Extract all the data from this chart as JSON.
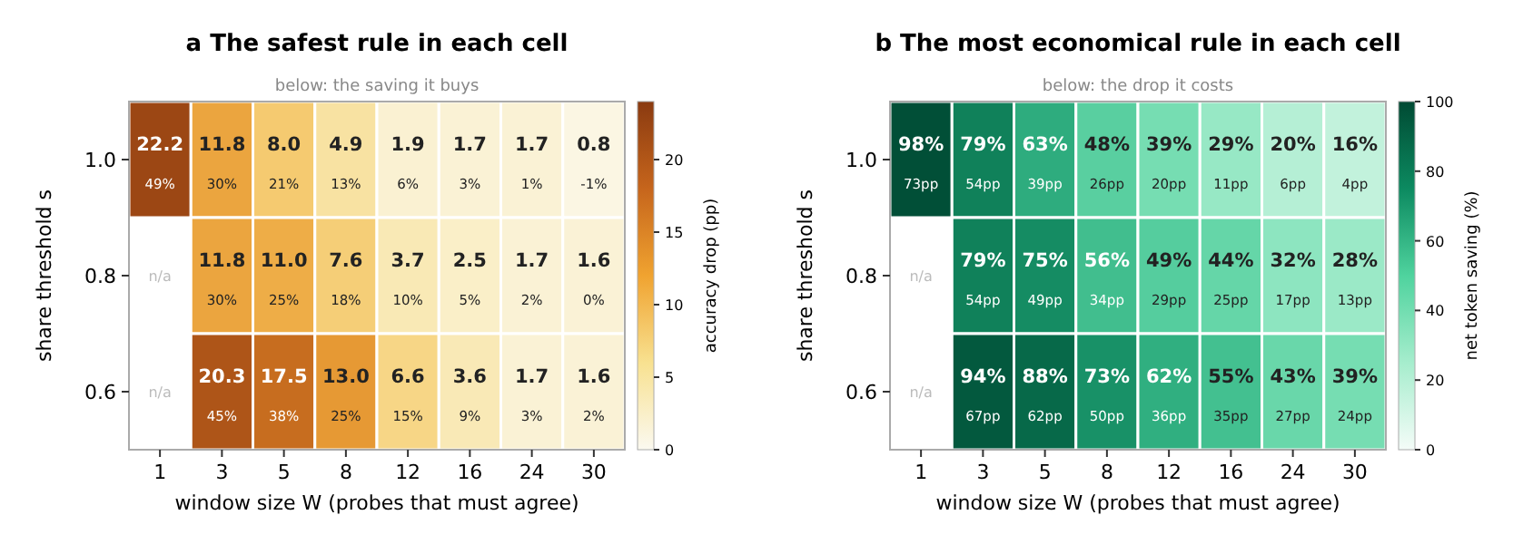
{
  "chart_data": [
    {
      "type": "heatmap",
      "title": "a  The safest rule in each cell",
      "subtitle": "below: the saving it buys",
      "xlabel": "window size W  (probes that must agree)",
      "ylabel": "share threshold s",
      "clabel": "accuracy drop (pp)",
      "categories": [
        "1",
        "3",
        "5",
        "8",
        "12",
        "16",
        "24",
        "30"
      ],
      "y_categories": [
        "1.0",
        "0.8",
        "0.6"
      ],
      "cells": [
        [
          22.2,
          11.8,
          8.0,
          4.9,
          1.9,
          1.7,
          1.7,
          0.8
        ],
        [
          null,
          11.8,
          11.0,
          7.6,
          3.7,
          2.5,
          1.7,
          1.6
        ],
        [
          null,
          20.3,
          17.5,
          13.0,
          6.6,
          3.6,
          1.7,
          1.6
        ]
      ],
      "cell_labels": [
        [
          "22.2\n49%",
          "11.8\n30%",
          "8.0\n21%",
          "4.9\n13%",
          "1.9\n6%",
          "1.7\n3%",
          "1.7\n1%",
          "0.8\n-1%"
        ],
        [
          "n/a",
          "11.8\n30%",
          "11.0\n25%",
          "7.6\n18%",
          "3.7\n10%",
          "2.5\n5%",
          "1.7\n2%",
          "1.6\n0%"
        ],
        [
          "n/a",
          "20.3\n45%",
          "17.5\n38%",
          "13.0\n25%",
          "6.6\n15%",
          "3.6\n9%",
          "1.7\n3%",
          "1.6\n2%"
        ]
      ],
      "colors": [
        "#fbf9f0",
        "#f8e190",
        "#f0a330",
        "#c6651c",
        "#8a3a10"
      ],
      "clim": [
        0,
        24
      ],
      "cticks": [
        0,
        5,
        10,
        15,
        20
      ]
    },
    {
      "type": "heatmap",
      "title": "b  The most economical rule in each cell",
      "subtitle": "below: the drop it costs",
      "xlabel": "window size W  (probes that must agree)",
      "ylabel": "share threshold s",
      "clabel": "net token saving (%)",
      "categories": [
        "1",
        "3",
        "5",
        "8",
        "12",
        "16",
        "24",
        "30"
      ],
      "y_categories": [
        "1.0",
        "0.8",
        "0.6"
      ],
      "cells": [
        [
          98,
          79,
          63,
          48,
          39,
          29,
          20,
          16
        ],
        [
          null,
          79,
          75,
          56,
          49,
          44,
          32,
          28
        ],
        [
          null,
          94,
          88,
          73,
          62,
          55,
          43,
          39
        ]
      ],
      "cell_labels": [
        [
          "98%\n73pp",
          "79%\n54pp",
          "63%\n39pp",
          "48%\n26pp",
          "39%\n20pp",
          "29%\n11pp",
          "20%\n6pp",
          "16%\n4pp"
        ],
        [
          "n/a",
          "79%\n54pp",
          "75%\n49pp",
          "56%\n34pp",
          "49%\n29pp",
          "44%\n25pp",
          "32%\n17pp",
          "28%\n13pp"
        ],
        [
          "n/a",
          "94%\n67pp",
          "88%\n62pp",
          "73%\n50pp",
          "62%\n36pp",
          "55%\n35pp",
          "43%\n27pp",
          "39%\n24pp"
        ]
      ],
      "colors": [
        "#f4fcf8",
        "#a6edcd",
        "#4fd39e",
        "#0c8a60",
        "#004a33"
      ],
      "clim": [
        0,
        100
      ],
      "cticks": [
        0,
        20,
        40,
        60,
        80,
        100
      ]
    }
  ]
}
